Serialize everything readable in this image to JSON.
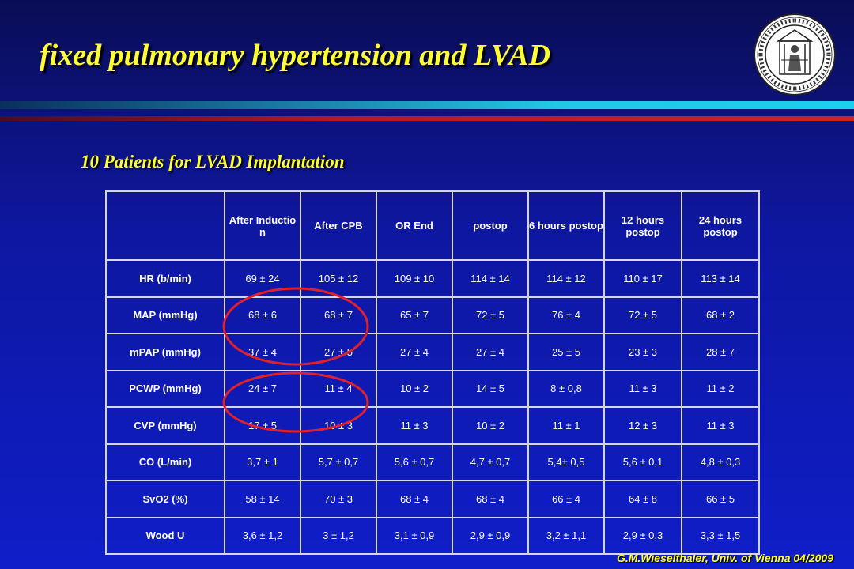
{
  "slide": {
    "title": "fixed pulmonary hypertension and LVAD",
    "subtitle": "10 Patients for LVAD Implantation",
    "footer": "G.M.Wieselthaler,  Univ. of Vienna 04/2009",
    "seal_icon": "university-of-vienna-seal-icon"
  },
  "colors": {
    "background": "#0e17a0",
    "title": "#ffff33",
    "grid": "#d6d6e8",
    "highlight_ellipse": "#e0202a"
  },
  "table": {
    "columns": [
      "",
      "After Inductio n",
      "After CPB",
      "OR End",
      "postop",
      "6 hours postop",
      "12 hours postop",
      "24 hours postop"
    ],
    "rows": [
      {
        "label": "HR (b/min)",
        "values": [
          "69 ± 24",
          "105 ± 12",
          "109 ± 10",
          "114 ± 14",
          "114 ± 12",
          "110 ± 17",
          "113 ± 14"
        ]
      },
      {
        "label": "MAP (mmHg)",
        "values": [
          "68 ± 6",
          "68 ± 7",
          "65 ± 7",
          "72 ± 5",
          "76 ± 4",
          "72 ± 5",
          "68 ± 2"
        ]
      },
      {
        "label": "mPAP (mmHg)",
        "values": [
          "37 ± 4",
          "27 ± 5",
          "27 ± 4",
          "27 ± 4",
          "25 ± 5",
          "23 ± 3",
          "28 ± 7"
        ]
      },
      {
        "label": "PCWP (mmHg)",
        "values": [
          "24 ± 7",
          "11 ± 4",
          "10 ± 2",
          "14 ± 5",
          "8 ± 0,8",
          "11 ± 3",
          "11 ± 2"
        ]
      },
      {
        "label": "CVP (mmHg)",
        "values": [
          "17 ± 5",
          "10 ± 3",
          "11 ± 3",
          "10 ± 2",
          "11 ± 1",
          "12 ± 3",
          "11 ± 3"
        ]
      },
      {
        "label": "CO (L/min)",
        "values": [
          "3,7 ± 1",
          "5,7 ± 0,7",
          "5,6 ± 0,7",
          "4,7 ± 0,7",
          "5,4± 0,5",
          "5,6 ± 0,1",
          "4,8 ± 0,3"
        ]
      },
      {
        "label": "SvO2 (%)",
        "values": [
          "58 ± 14",
          "70 ± 3",
          "68 ± 4",
          "68 ± 4",
          "66 ± 4",
          "64 ± 8",
          "66 ± 5"
        ]
      },
      {
        "label": "Wood U",
        "values": [
          "3,6 ± 1,2",
          "3 ± 1,2",
          "3,1 ± 0,9",
          "2,9 ± 0,9",
          "3,2 ± 1,1",
          "2,9 ± 0,3",
          "3,3 ± 1,5"
        ]
      }
    ]
  }
}
